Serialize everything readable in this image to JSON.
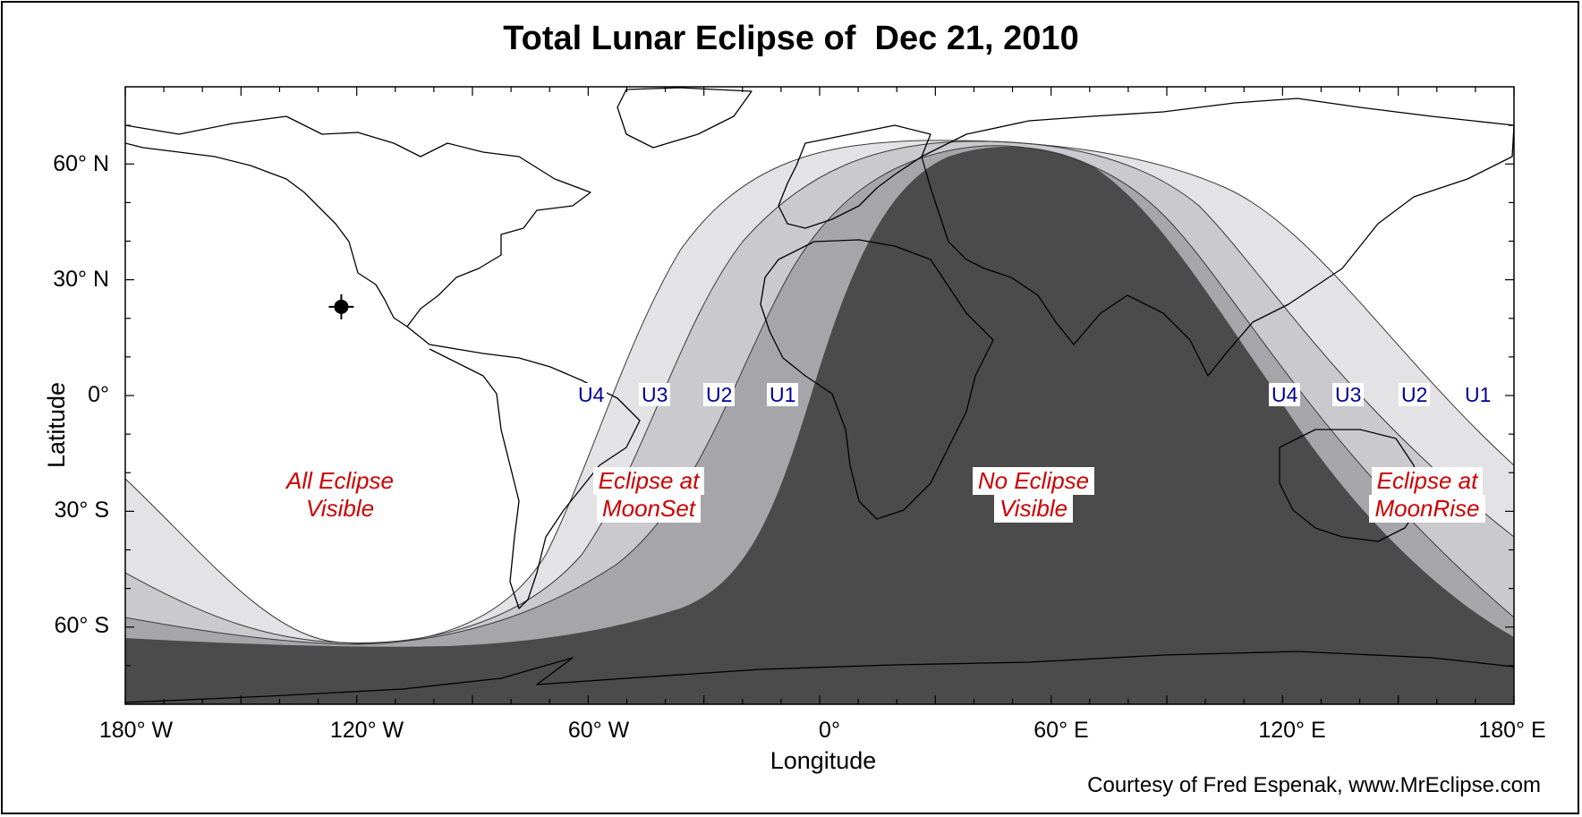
{
  "title": "Total Lunar Eclipse of  Dec 21, 2010",
  "axes": {
    "ylabel": "Latitude",
    "xlabel": "Longitude",
    "lat_ticks": [
      "60° N",
      "30° N",
      "0°",
      "30° S",
      "60° S"
    ],
    "lon_ticks": [
      "180° W",
      "120° W",
      "60° W",
      "0°",
      "60° E",
      "120° E",
      "180° E"
    ],
    "lon_range": [
      -180,
      180
    ],
    "lat_range": [
      -80,
      80
    ]
  },
  "credit": "Courtesy of Fred Espenak, www.MrEclipse.com",
  "regions": {
    "all_visible": {
      "line1": "All Eclipse",
      "line2": "Visible"
    },
    "moonset": {
      "line1": "Eclipse at",
      "line2": "MoonSet"
    },
    "none_visible": {
      "line1": "No Eclipse",
      "line2": "Visible"
    },
    "moonrise": {
      "line1": "Eclipse at",
      "line2": "MoonRise"
    }
  },
  "contacts": {
    "west": [
      "U4",
      "U3",
      "U2",
      "U1"
    ],
    "east": [
      "U4",
      "U3",
      "U2",
      "U1"
    ]
  },
  "sublunar_point": {
    "lon": -124,
    "lat": 23
  },
  "colors": {
    "umbra_zone": "#4b4b4b",
    "zone_u1_u2": "#a6a6aa",
    "zone_u2_u3": "#c9c9ce",
    "zone_u3_u4": "#e3e3e5",
    "visible": "#ffffff",
    "region_text": "#cc0000",
    "contact_text": "#000099"
  }
}
